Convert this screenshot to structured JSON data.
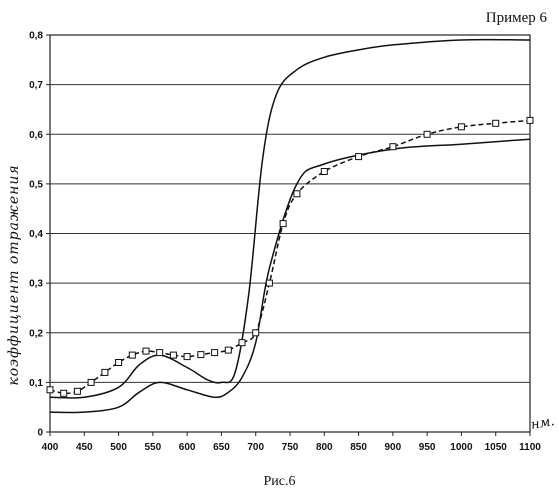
{
  "page": {
    "example_label": "Пример 6",
    "caption": "Рис.6"
  },
  "chart_data": {
    "type": "line",
    "title": "",
    "xlabel": "нм.",
    "ylabel": "коэффициент отражения",
    "xlim": [
      400,
      1100
    ],
    "ylim": [
      0,
      0.8
    ],
    "x_ticks": [
      400,
      450,
      500,
      550,
      600,
      650,
      700,
      750,
      800,
      850,
      900,
      950,
      1000,
      1050,
      1100
    ],
    "y_ticks": [
      0,
      0.1,
      0.2,
      0.3,
      0.4,
      0.5,
      0.6,
      0.7,
      0.8
    ],
    "y_tick_labels": [
      "0",
      "0,1",
      "0,2",
      "0,3",
      "0,4",
      "0,5",
      "0,6",
      "0,7",
      "0,8"
    ],
    "grid": "horizontal",
    "legend": "none",
    "series": [
      {
        "style": "solid",
        "x": [
          400,
          450,
          500,
          530,
          560,
          600,
          640,
          660,
          680,
          700,
          720,
          760,
          800,
          900,
          1000,
          1100
        ],
        "y": [
          0.04,
          0.04,
          0.05,
          0.08,
          0.1,
          0.085,
          0.07,
          0.08,
          0.11,
          0.18,
          0.33,
          0.5,
          0.54,
          0.57,
          0.58,
          0.59
        ]
      },
      {
        "style": "solid",
        "x": [
          400,
          450,
          500,
          530,
          560,
          600,
          630,
          650,
          670,
          690,
          710,
          730,
          760,
          800,
          850,
          900,
          1000,
          1100
        ],
        "y": [
          0.07,
          0.07,
          0.09,
          0.135,
          0.155,
          0.13,
          0.105,
          0.1,
          0.12,
          0.28,
          0.55,
          0.68,
          0.73,
          0.755,
          0.77,
          0.78,
          0.79,
          0.79
        ]
      },
      {
        "style": "dashed",
        "marker": "square",
        "x": [
          400,
          420,
          440,
          460,
          480,
          500,
          520,
          540,
          560,
          580,
          600,
          620,
          640,
          660,
          680,
          700,
          720,
          740,
          760,
          800,
          850,
          900,
          950,
          1000,
          1050,
          1100
        ],
        "y": [
          0.085,
          0.078,
          0.082,
          0.1,
          0.12,
          0.14,
          0.155,
          0.163,
          0.16,
          0.155,
          0.152,
          0.156,
          0.16,
          0.165,
          0.18,
          0.2,
          0.3,
          0.42,
          0.48,
          0.525,
          0.555,
          0.575,
          0.6,
          0.615,
          0.622,
          0.628
        ]
      }
    ]
  }
}
